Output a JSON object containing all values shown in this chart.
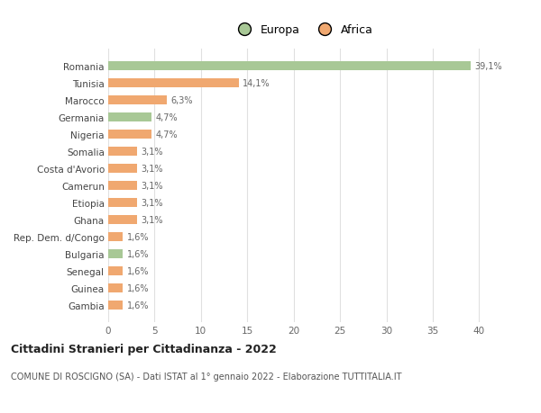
{
  "categories": [
    "Romania",
    "Tunisia",
    "Marocco",
    "Germania",
    "Nigeria",
    "Somalia",
    "Costa d'Avorio",
    "Camerun",
    "Etiopia",
    "Ghana",
    "Rep. Dem. d/Congo",
    "Bulgaria",
    "Senegal",
    "Guinea",
    "Gambia"
  ],
  "values": [
    39.1,
    14.1,
    6.3,
    4.7,
    4.7,
    3.1,
    3.1,
    3.1,
    3.1,
    3.1,
    1.6,
    1.6,
    1.6,
    1.6,
    1.6
  ],
  "labels": [
    "39,1%",
    "14,1%",
    "6,3%",
    "4,7%",
    "4,7%",
    "3,1%",
    "3,1%",
    "3,1%",
    "3,1%",
    "3,1%",
    "1,6%",
    "1,6%",
    "1,6%",
    "1,6%",
    "1,6%"
  ],
  "continents": [
    "Europa",
    "Africa",
    "Africa",
    "Europa",
    "Africa",
    "Africa",
    "Africa",
    "Africa",
    "Africa",
    "Africa",
    "Africa",
    "Europa",
    "Africa",
    "Africa",
    "Africa"
  ],
  "color_europa": "#a8c896",
  "color_africa": "#f0a870",
  "background_color": "#ffffff",
  "title": "Cittadini Stranieri per Cittadinanza - 2022",
  "subtitle": "COMUNE DI ROSCIGNO (SA) - Dati ISTAT al 1° gennaio 2022 - Elaborazione TUTTITALIA.IT",
  "xlim": [
    0,
    42
  ],
  "xticks": [
    0,
    5,
    10,
    15,
    20,
    25,
    30,
    35,
    40
  ],
  "legend_europa": "Europa",
  "legend_africa": "Africa",
  "grid_color": "#e0e0e0",
  "bar_height": 0.55
}
